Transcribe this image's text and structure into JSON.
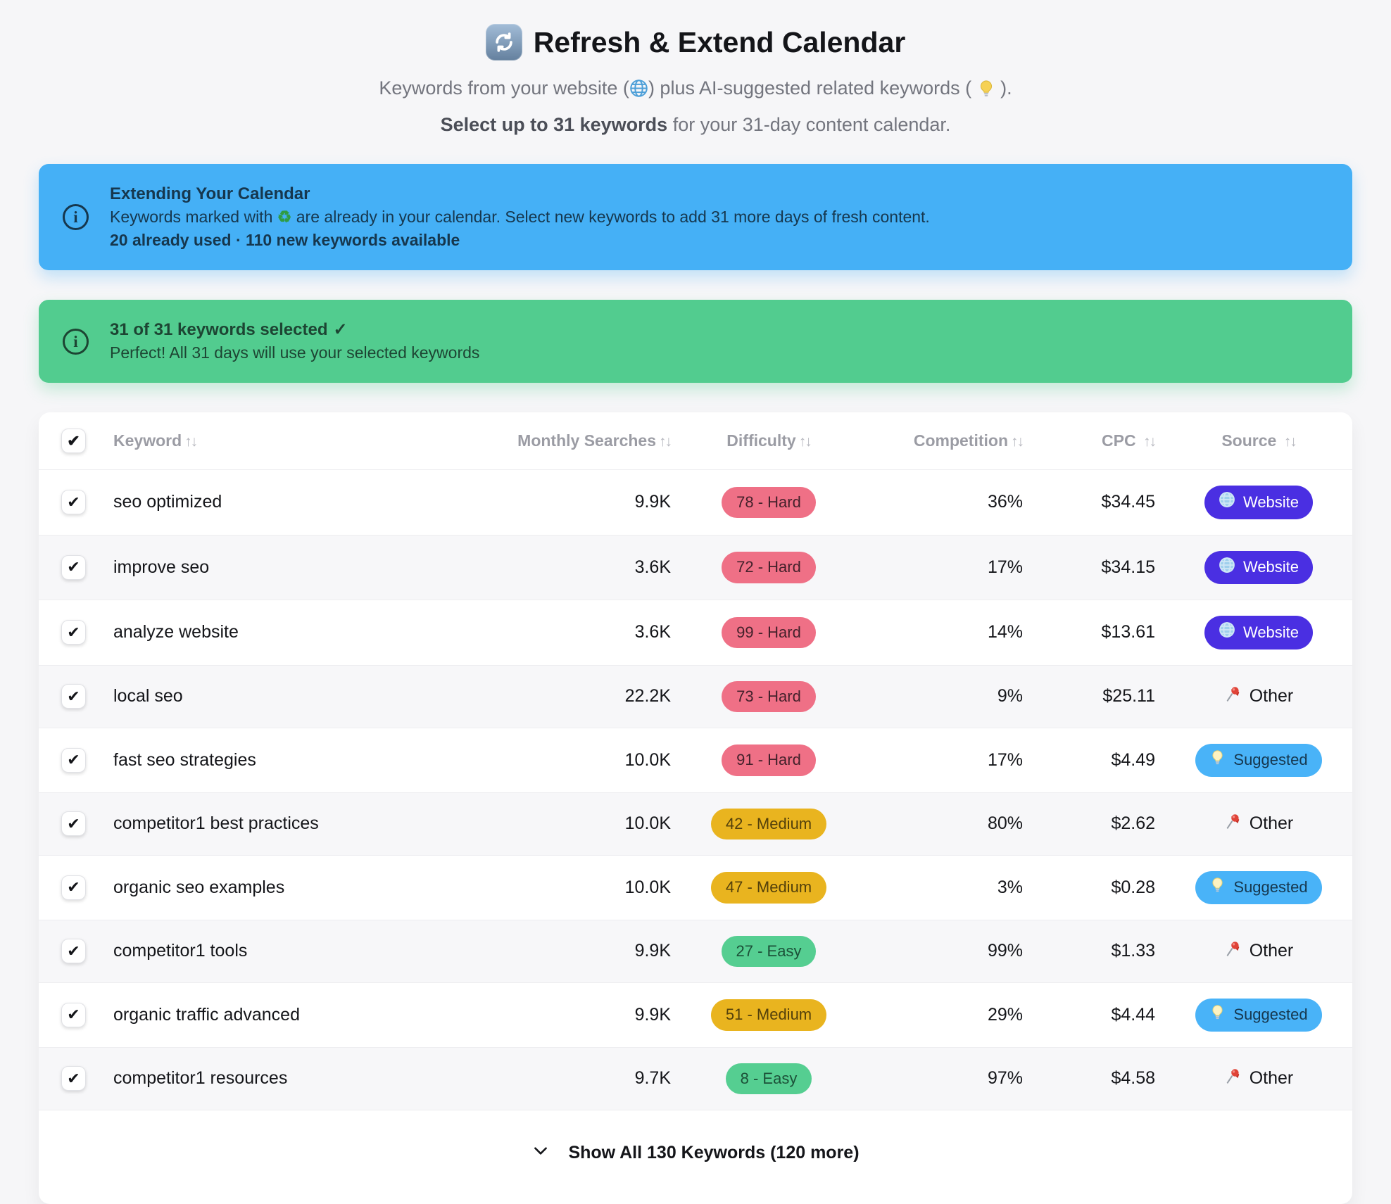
{
  "header": {
    "title": "Refresh & Extend Calendar",
    "subtitle": {
      "part1": "Keywords from your website (",
      "part2": ") plus AI-suggested related keywords ( ",
      "part3": " )."
    },
    "selection_note": {
      "bold": "Select up to 31 keywords",
      "rest": " for your 31-day content calendar."
    }
  },
  "info_banner": {
    "title": "Extending Your Calendar",
    "body_before_icon": "Keywords marked with ",
    "body_after_icon": " are already in your calendar. Select new keywords to add 31 more days of fresh content.",
    "stats": "20 already used · 110 new keywords available"
  },
  "success_banner": {
    "title": "31 of 31 keywords selected",
    "check": "✓",
    "body": "Perfect! All 31 days will use your selected keywords"
  },
  "icons": {
    "check": "✔",
    "recycle": "♻",
    "info": "i"
  },
  "table": {
    "sort_glyph": "↑↓",
    "headers": {
      "keyword": "Keyword",
      "monthly": "Monthly Searches",
      "difficulty": "Difficulty",
      "competition": "Competition",
      "cpc": "CPC",
      "source": "Source"
    },
    "rows": [
      {
        "keyword": "seo optimized",
        "monthly": "9.9K",
        "difficulty": "78 - Hard",
        "difficulty_level": "hard",
        "competition": "36%",
        "cpc": "$34.45",
        "source": {
          "type": "website",
          "label": "Website"
        },
        "selected": true
      },
      {
        "keyword": "improve seo",
        "monthly": "3.6K",
        "difficulty": "72 - Hard",
        "difficulty_level": "hard",
        "competition": "17%",
        "cpc": "$34.15",
        "source": {
          "type": "website",
          "label": "Website"
        },
        "selected": true
      },
      {
        "keyword": "analyze website",
        "monthly": "3.6K",
        "difficulty": "99 - Hard",
        "difficulty_level": "hard",
        "competition": "14%",
        "cpc": "$13.61",
        "source": {
          "type": "website",
          "label": "Website"
        },
        "selected": true
      },
      {
        "keyword": "local seo",
        "monthly": "22.2K",
        "difficulty": "73 - Hard",
        "difficulty_level": "hard",
        "competition": "9%",
        "cpc": "$25.11",
        "source": {
          "type": "other",
          "label": "Other"
        },
        "selected": true
      },
      {
        "keyword": "fast seo strategies",
        "monthly": "10.0K",
        "difficulty": "91 - Hard",
        "difficulty_level": "hard",
        "competition": "17%",
        "cpc": "$4.49",
        "source": {
          "type": "suggested",
          "label": "Suggested"
        },
        "selected": true
      },
      {
        "keyword": "competitor1 best practices",
        "monthly": "10.0K",
        "difficulty": "42 - Medium",
        "difficulty_level": "medium",
        "competition": "80%",
        "cpc": "$2.62",
        "source": {
          "type": "other",
          "label": "Other"
        },
        "selected": true
      },
      {
        "keyword": "organic seo examples",
        "monthly": "10.0K",
        "difficulty": "47 - Medium",
        "difficulty_level": "medium",
        "competition": "3%",
        "cpc": "$0.28",
        "source": {
          "type": "suggested",
          "label": "Suggested"
        },
        "selected": true
      },
      {
        "keyword": "competitor1 tools",
        "monthly": "9.9K",
        "difficulty": "27 - Easy",
        "difficulty_level": "easy",
        "competition": "99%",
        "cpc": "$1.33",
        "source": {
          "type": "other",
          "label": "Other"
        },
        "selected": true
      },
      {
        "keyword": "organic traffic advanced",
        "monthly": "9.9K",
        "difficulty": "51 - Medium",
        "difficulty_level": "medium",
        "competition": "29%",
        "cpc": "$4.44",
        "source": {
          "type": "suggested",
          "label": "Suggested"
        },
        "selected": true
      },
      {
        "keyword": "competitor1 resources",
        "monthly": "9.7K",
        "difficulty": "8 - Easy",
        "difficulty_level": "easy",
        "competition": "97%",
        "cpc": "$4.58",
        "source": {
          "type": "other",
          "label": "Other"
        },
        "selected": true
      }
    ],
    "footer_label": "Show All 130 Keywords (120 more)"
  },
  "colors": {
    "page_bg": "#f6f6f8",
    "info_banner_bg": "#45b0f6",
    "success_banner_bg": "#52cc8f",
    "pill_hard_bg": "#ef7086",
    "pill_medium_bg": "#e9b41f",
    "pill_easy_bg": "#55ce91",
    "source_website_bg": "#4a2fe2",
    "source_suggested_bg": "#49b3f8"
  }
}
